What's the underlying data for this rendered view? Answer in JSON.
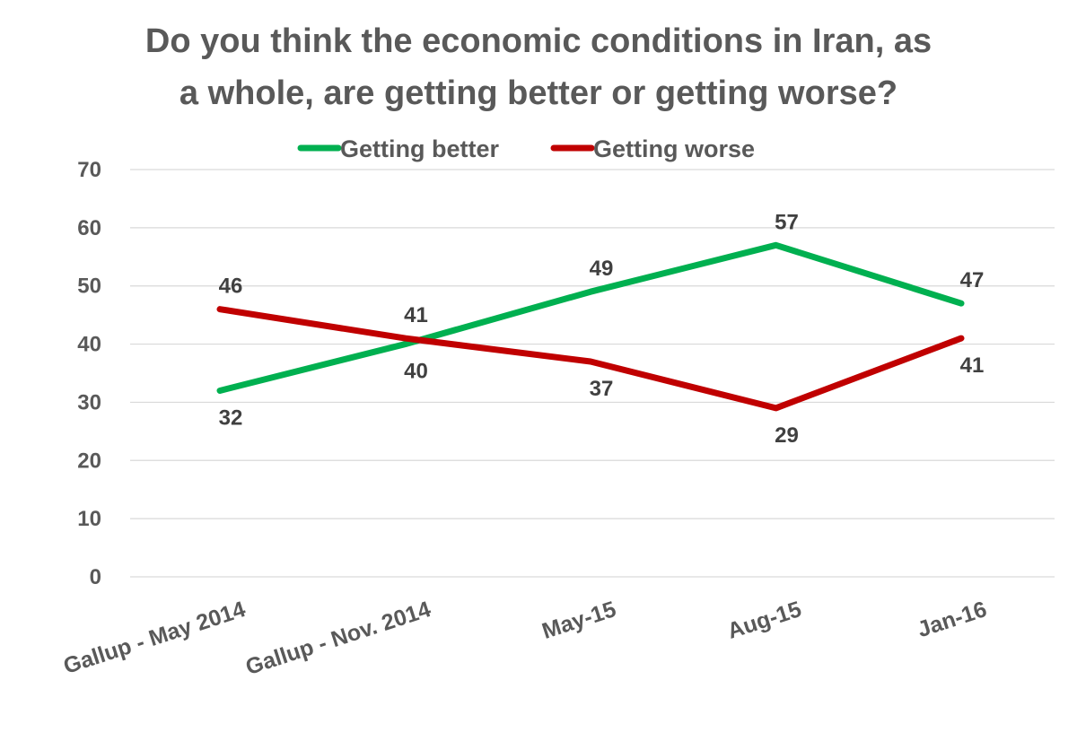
{
  "chart_data": {
    "type": "line",
    "title_lines": [
      "Do you think the economic conditions in Iran, as",
      "a whole, are getting better or getting worse?"
    ],
    "categories": [
      "Gallup - May 2014",
      "Gallup - Nov. 2014",
      "May-15",
      "Aug-15",
      "Jan-16"
    ],
    "series": [
      {
        "name": "Getting better",
        "color": "#00b050",
        "values": [
          32,
          40,
          49,
          57,
          47
        ]
      },
      {
        "name": "Getting worse",
        "color": "#c00000",
        "values": [
          46,
          41,
          37,
          29,
          41
        ]
      }
    ],
    "ylim": [
      0,
      70
    ],
    "yticks": [
      0,
      10,
      20,
      30,
      40,
      50,
      60,
      70
    ],
    "grid": true,
    "legend": "top"
  }
}
